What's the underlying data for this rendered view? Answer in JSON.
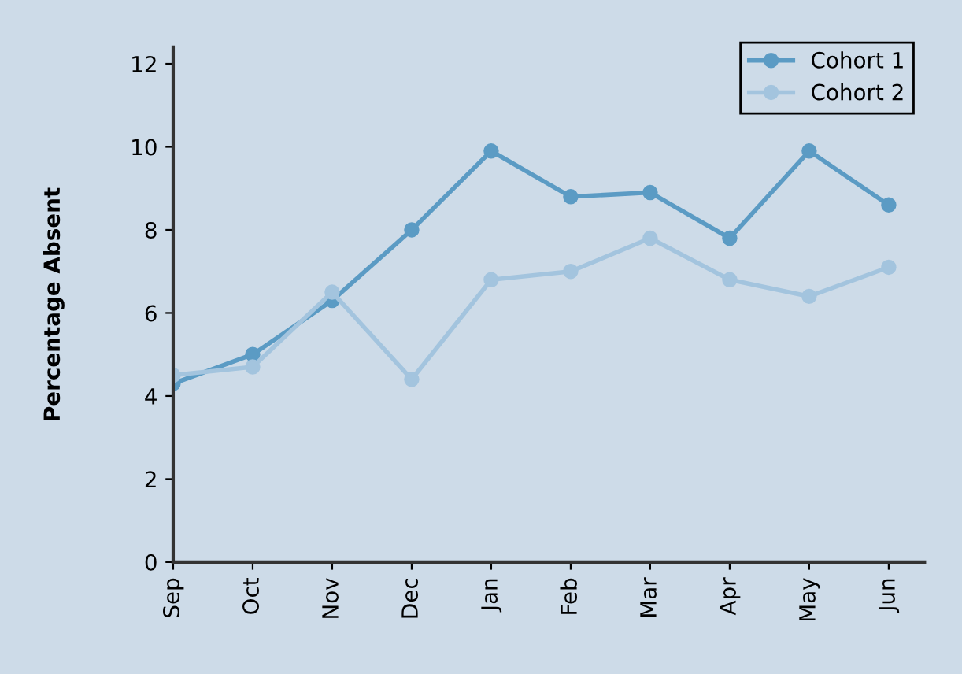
{
  "chart_data": {
    "type": "line",
    "ylabel": "Percentage Absent",
    "categories": [
      "Sep",
      "Oct",
      "Nov",
      "Dec",
      "Jan",
      "Feb",
      "Mar",
      "Apr",
      "May",
      "Jun"
    ],
    "series": [
      {
        "name": "Cohort 1",
        "color": "#5b9bc4",
        "values": [
          4.3,
          5.0,
          6.3,
          8.0,
          9.9,
          8.8,
          8.9,
          7.8,
          9.9,
          8.6
        ]
      },
      {
        "name": "Cohort 2",
        "color": "#a3c4de",
        "values": [
          4.5,
          4.7,
          6.5,
          4.4,
          6.8,
          7.0,
          7.8,
          6.8,
          6.4,
          7.1
        ]
      }
    ],
    "ylim": [
      0,
      12.4
    ],
    "yticks": [
      0,
      2,
      4,
      6,
      8,
      10,
      12
    ],
    "grid": false,
    "legend": "top right",
    "marker": "circle",
    "line_style": "solid"
  }
}
